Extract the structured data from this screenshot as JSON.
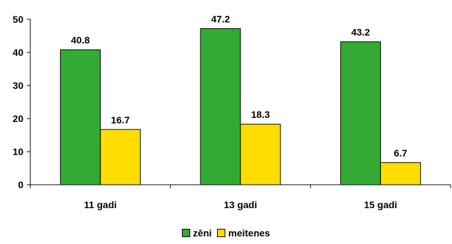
{
  "chart_data": {
    "type": "bar",
    "categories": [
      "11 gadi",
      "13 gadi",
      "15 gadi"
    ],
    "series": [
      {
        "name": "zēni",
        "values": [
          40.8,
          47.2,
          43.2
        ],
        "color": "#33aa33"
      },
      {
        "name": "meitenes",
        "values": [
          16.7,
          18.3,
          6.7
        ],
        "color": "#ffdd00"
      }
    ],
    "ylim": [
      0,
      50
    ],
    "yticks": [
      0,
      10,
      20,
      30,
      40,
      50
    ],
    "grid": false,
    "legend_position": "bottom-center",
    "title": "",
    "xlabel": "",
    "ylabel": ""
  }
}
